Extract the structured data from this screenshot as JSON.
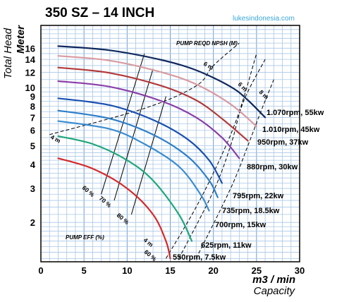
{
  "chart_data": {
    "type": "line",
    "title": "350 SZ – 14 INCH",
    "watermark": "lukesindonesia.com",
    "xlabel": "m3 / min",
    "xlabel_sub": "Capacity",
    "ylabel": "Total Head",
    "ylabel_sub": "Meter",
    "xlim": [
      0,
      30
    ],
    "ylim": [
      1.25,
      21
    ],
    "y_scale": "log",
    "x_ticks": [
      "0",
      "5",
      "10",
      "15",
      "20",
      "25",
      "30"
    ],
    "y_ticks": [
      "2",
      "3",
      "4",
      "5",
      "6",
      "7",
      "8",
      "9",
      "10",
      "12",
      "14",
      "16"
    ],
    "grid": true,
    "series": [
      {
        "name": "1.070rpm, 55kw",
        "color": "#10285e",
        "x": [
          2,
          8,
          14,
          18,
          22,
          24,
          26
        ],
        "y": [
          16.4,
          15.6,
          13.9,
          12.3,
          10.1,
          8.6,
          7.0
        ]
      },
      {
        "name": "1.010rpm, 45kw",
        "color": "#d99aa0",
        "x": [
          2,
          8,
          14,
          18,
          22,
          25
        ],
        "y": [
          14.6,
          13.8,
          12.0,
          10.4,
          8.2,
          6.3
        ]
      },
      {
        "name": "950rpm, 37kw",
        "color": "#b23a3a",
        "x": [
          2,
          8,
          14,
          18,
          21,
          24
        ],
        "y": [
          12.7,
          11.9,
          10.2,
          8.6,
          6.9,
          5.3
        ]
      },
      {
        "name": "880rpm, 30kw",
        "color": "#8a3fa8",
        "x": [
          2,
          8,
          14,
          18,
          21,
          23
        ],
        "y": [
          10.8,
          10.1,
          8.5,
          7.0,
          5.5,
          4.3
        ]
      },
      {
        "name": "795rpm, 22kw",
        "color": "#1a50b0",
        "x": [
          2,
          8,
          13,
          17,
          19.5,
          21
        ],
        "y": [
          8.8,
          8.1,
          6.8,
          5.4,
          4.2,
          3.2
        ]
      },
      {
        "name": "735rpm, 18.5kw",
        "color": "#2f7fc8",
        "x": [
          2,
          8,
          13,
          17,
          19.5,
          20.5
        ],
        "y": [
          7.6,
          6.9,
          5.7,
          4.4,
          3.3,
          2.7
        ]
      },
      {
        "name": "700rpm, 15kw",
        "color": "#3a8cd0",
        "x": [
          2,
          8,
          12,
          16,
          18.5,
          19.5
        ],
        "y": [
          6.7,
          6.1,
          5.1,
          3.9,
          2.8,
          2.3
        ]
      },
      {
        "name": "625rpm, 11kw",
        "color": "#1fa77a",
        "x": [
          2,
          6,
          10,
          13,
          16,
          17.5
        ],
        "y": [
          5.6,
          5.1,
          4.2,
          3.3,
          2.2,
          1.6
        ]
      },
      {
        "name": "550rpm, 7.5kw",
        "color": "#d42a2a",
        "x": [
          2,
          6,
          10,
          13,
          14.5,
          15
        ],
        "y": [
          4.3,
          3.8,
          3.0,
          2.2,
          1.6,
          1.3
        ]
      }
    ],
    "efficiency_lines": [
      {
        "name": "60 %",
        "x": [
          7,
          12
        ],
        "y": [
          2.8,
          15
        ]
      },
      {
        "name": "70 %",
        "x": [
          8.5,
          13
        ],
        "y": [
          2.6,
          12.5
        ]
      },
      {
        "name": "80 %",
        "x": [
          10.5,
          14.5
        ],
        "y": [
          2.2,
          9
        ]
      }
    ],
    "npsh_lines": [
      {
        "name": "4 m",
        "x": [
          1,
          12,
          18,
          20,
          23
        ],
        "y": [
          5.7,
          7.8,
          10.2,
          13,
          17
        ]
      },
      {
        "name": "6 m",
        "x": [
          14.5,
          18,
          21,
          23,
          25
        ],
        "y": [
          1.3,
          2.4,
          4.5,
          7.5,
          15
        ]
      },
      {
        "name": "6 m",
        "x": [
          16,
          20,
          22,
          23.5,
          26
        ],
        "y": [
          1.3,
          2.9,
          5,
          8.5,
          14
        ]
      },
      {
        "name": "8 m",
        "x": [
          18,
          22,
          24,
          25.5,
          27
        ],
        "y": [
          1.3,
          3.0,
          5.0,
          7.5,
          11
        ]
      }
    ],
    "annotations": {
      "npsh_label": "PUMP REQD NPSH (M)",
      "eff_label": "PUMP EFF (%)",
      "eff_60": "60 %",
      "eff_70": "70 %",
      "eff_80": "80 %",
      "npsh_4m_left": "4 m",
      "npsh_6m_top": "6 m",
      "npsh_6m_right": "6 m",
      "npsh_8m": "8 m",
      "npsh_4m_bottom": "4 m",
      "eff_60_bottom": "60 %"
    }
  }
}
